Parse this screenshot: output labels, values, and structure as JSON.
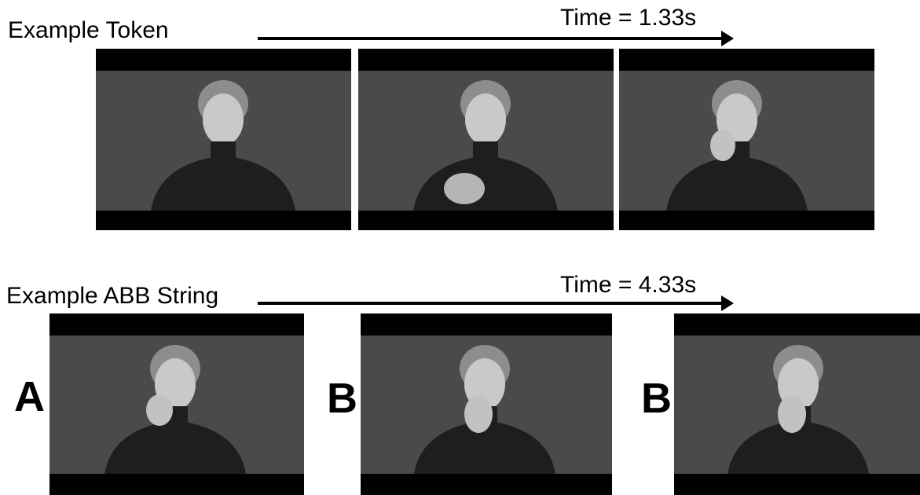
{
  "rows": [
    {
      "label": "Example Token",
      "time_label": "Time = 1.33s"
    },
    {
      "label": "Example ABB String",
      "time_label": "Time = 4.33s"
    }
  ],
  "letters": [
    "A",
    "B",
    "B"
  ],
  "colors": {
    "backdrop": "#4a4a4a",
    "sweater": "#1e1e1e",
    "skin": "#c9c9c9",
    "hair": "#8d8d8d",
    "bars": "#000000"
  }
}
